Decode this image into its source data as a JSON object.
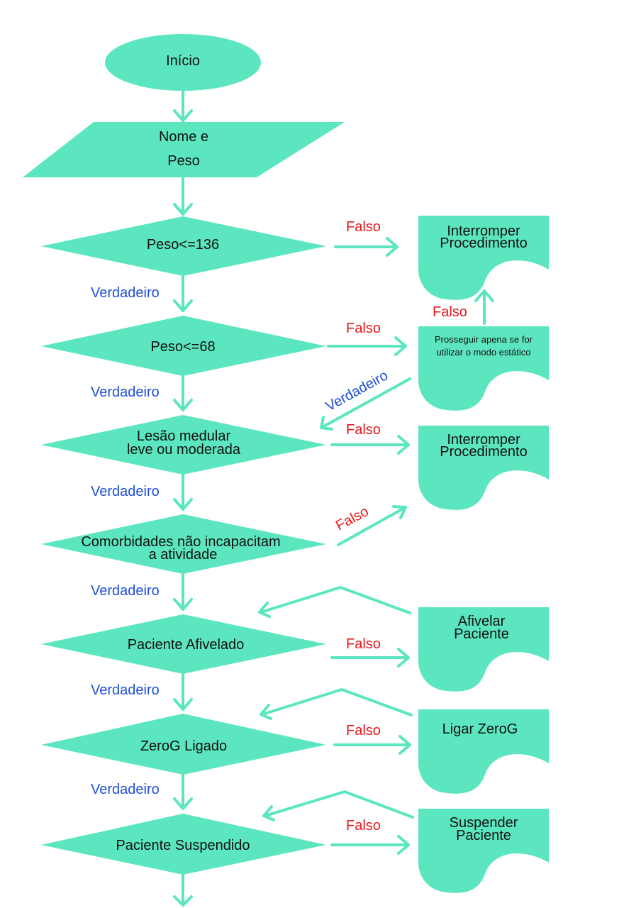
{
  "colors": {
    "shape": "#5ce6bf",
    "false_label": "#e8191c",
    "true_label": "#1f4fd6",
    "text": "#111111"
  },
  "start": {
    "label": "Início"
  },
  "input": {
    "line1": "Nome e",
    "line2": "Peso"
  },
  "decisions": [
    {
      "lines": [
        "Peso<=136"
      ]
    },
    {
      "lines": [
        "Peso<=68"
      ]
    },
    {
      "lines": [
        "Lesão medular",
        "leve ou moderada"
      ]
    },
    {
      "lines": [
        "Comorbidades não incapacitam",
        "a atividade"
      ]
    },
    {
      "lines": [
        "Paciente Afivelado"
      ]
    },
    {
      "lines": [
        "ZeroG Ligado"
      ]
    },
    {
      "lines": [
        "Paciente Suspendido"
      ]
    }
  ],
  "documents": [
    {
      "lines": [
        "Interromper",
        "Procedimento"
      ]
    },
    {
      "lines": [
        "Prosseguir apena se for",
        "utilizar o modo estático"
      ]
    },
    {
      "lines": [
        "Interromper",
        "Procedimento"
      ]
    },
    {
      "lines": [
        "Afivelar",
        "Paciente"
      ]
    },
    {
      "lines": [
        "Ligar ZeroG"
      ]
    },
    {
      "lines": [
        "Suspender",
        "Paciente"
      ]
    }
  ],
  "labels": {
    "true": "Verdadeiro",
    "false": "Falso"
  }
}
